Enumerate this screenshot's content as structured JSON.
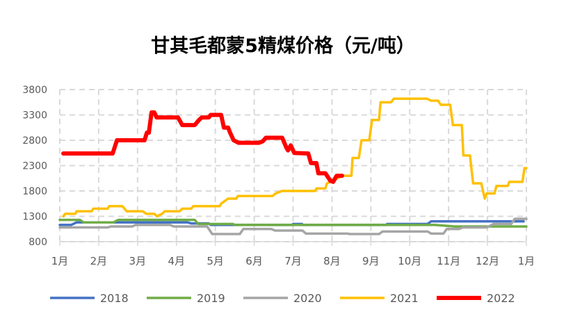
{
  "chart_data": {
    "type": "line",
    "title": "甘其毛都蒙5精煤价格（元/吨）",
    "xlabel": "",
    "ylabel": "",
    "ylim": [
      800,
      3800
    ],
    "yticks": [
      800,
      1300,
      1800,
      2300,
      2800,
      3300,
      3800
    ],
    "xlim": [
      1,
      13
    ],
    "xtick_labels": [
      "1月",
      "2月",
      "3月",
      "4月",
      "5月",
      "6月",
      "7月",
      "8月",
      "9月",
      "10月",
      "11月",
      "12月",
      "1月"
    ],
    "x_unit": "month position (1 = 1月 tick)",
    "grid": true,
    "legend": "bottom",
    "series": [
      {
        "name": "2018",
        "color": "#4472C4",
        "points": [
          [
            1,
            1130
          ],
          [
            1.29,
            1130
          ],
          [
            1.43,
            1180
          ],
          [
            4.29,
            1180
          ],
          [
            4.38,
            1160
          ],
          [
            4.83,
            1160
          ],
          [
            4.88,
            1130
          ],
          [
            6.98,
            1130
          ],
          [
            7.0,
            1150
          ],
          [
            7.23,
            1150
          ],
          [
            7.24,
            1130
          ],
          [
            9.39,
            1130
          ],
          [
            9.42,
            1150
          ],
          [
            10.46,
            1150
          ],
          [
            10.55,
            1200
          ],
          [
            12.93,
            1200
          ]
        ]
      },
      {
        "name": "2019",
        "color": "#70AD47",
        "points": [
          [
            1,
            1230
          ],
          [
            1.52,
            1230
          ],
          [
            1.61,
            1180
          ],
          [
            2.38,
            1180
          ],
          [
            2.5,
            1230
          ],
          [
            4.47,
            1230
          ],
          [
            4.56,
            1150
          ],
          [
            5.45,
            1150
          ],
          [
            5.5,
            1130
          ],
          [
            10.64,
            1130
          ],
          [
            11.16,
            1100
          ],
          [
            13,
            1100
          ]
        ]
      },
      {
        "name": "2020",
        "color": "#A5A5A5",
        "points": [
          [
            1,
            1080
          ],
          [
            2.23,
            1080
          ],
          [
            2.32,
            1100
          ],
          [
            2.86,
            1100
          ],
          [
            2.95,
            1130
          ],
          [
            3.84,
            1130
          ],
          [
            3.93,
            1100
          ],
          [
            4.79,
            1100
          ],
          [
            4.92,
            950
          ],
          [
            5.63,
            950
          ],
          [
            5.72,
            1050
          ],
          [
            6.44,
            1050
          ],
          [
            6.53,
            1020
          ],
          [
            7.24,
            1020
          ],
          [
            7.33,
            960
          ],
          [
            8.41,
            960
          ],
          [
            8.45,
            950
          ],
          [
            9.21,
            950
          ],
          [
            9.3,
            1000
          ],
          [
            10.46,
            1000
          ],
          [
            10.55,
            960
          ],
          [
            10.87,
            960
          ],
          [
            10.95,
            1050
          ],
          [
            11.27,
            1050
          ],
          [
            11.36,
            1080
          ],
          [
            11.98,
            1080
          ],
          [
            12.16,
            1150
          ],
          [
            12.61,
            1150
          ],
          [
            12.7,
            1250
          ],
          [
            13,
            1250
          ]
        ]
      },
      {
        "name": "2021",
        "color": "#FFC000",
        "points": [
          [
            1.09,
            1300
          ],
          [
            1.14,
            1350
          ],
          [
            1.4,
            1350
          ],
          [
            1.43,
            1400
          ],
          [
            1.82,
            1400
          ],
          [
            1.86,
            1450
          ],
          [
            2.23,
            1450
          ],
          [
            2.27,
            1500
          ],
          [
            2.61,
            1500
          ],
          [
            2.72,
            1400
          ],
          [
            3.13,
            1400
          ],
          [
            3.22,
            1350
          ],
          [
            3.43,
            1350
          ],
          [
            3.5,
            1300
          ],
          [
            3.63,
            1350
          ],
          [
            3.7,
            1400
          ],
          [
            4.08,
            1400
          ],
          [
            4.15,
            1450
          ],
          [
            4.38,
            1450
          ],
          [
            4.43,
            1500
          ],
          [
            5.11,
            1500
          ],
          [
            5.15,
            1550
          ],
          [
            5.33,
            1650
          ],
          [
            5.54,
            1650
          ],
          [
            5.58,
            1700
          ],
          [
            6.47,
            1700
          ],
          [
            6.55,
            1750
          ],
          [
            6.71,
            1800
          ],
          [
            7.57,
            1800
          ],
          [
            7.6,
            1850
          ],
          [
            7.83,
            1850
          ],
          [
            7.87,
            1950
          ],
          [
            8.28,
            2100
          ],
          [
            8.5,
            2100
          ],
          [
            8.53,
            2450
          ],
          [
            8.69,
            2450
          ],
          [
            8.76,
            2800
          ],
          [
            8.96,
            2800
          ],
          [
            9.03,
            3200
          ],
          [
            9.21,
            3200
          ],
          [
            9.25,
            3550
          ],
          [
            9.52,
            3550
          ],
          [
            9.59,
            3620
          ],
          [
            10.45,
            3620
          ],
          [
            10.55,
            3580
          ],
          [
            10.73,
            3580
          ],
          [
            10.8,
            3500
          ],
          [
            11.04,
            3500
          ],
          [
            11.11,
            3100
          ],
          [
            11.34,
            3100
          ],
          [
            11.38,
            2500
          ],
          [
            11.55,
            2500
          ],
          [
            11.63,
            1950
          ],
          [
            11.84,
            1950
          ],
          [
            11.93,
            1650
          ],
          [
            11.98,
            1750
          ],
          [
            12.18,
            1750
          ],
          [
            12.23,
            1900
          ],
          [
            12.52,
            1900
          ],
          [
            12.56,
            1980
          ],
          [
            12.9,
            1980
          ],
          [
            12.95,
            2250
          ],
          [
            13,
            2250
          ]
        ]
      },
      {
        "name": "2022",
        "color": "#FF0000",
        "points": [
          [
            1.09,
            2540
          ],
          [
            2.36,
            2540
          ],
          [
            2.47,
            2800
          ],
          [
            3.18,
            2800
          ],
          [
            3.24,
            2950
          ],
          [
            3.29,
            2950
          ],
          [
            3.36,
            3350
          ],
          [
            3.43,
            3350
          ],
          [
            3.49,
            3250
          ],
          [
            4.04,
            3250
          ],
          [
            4.15,
            3100
          ],
          [
            4.47,
            3100
          ],
          [
            4.58,
            3200
          ],
          [
            4.65,
            3250
          ],
          [
            4.83,
            3250
          ],
          [
            4.88,
            3300
          ],
          [
            5.15,
            3300
          ],
          [
            5.22,
            3050
          ],
          [
            5.33,
            3050
          ],
          [
            5.38,
            2950
          ],
          [
            5.47,
            2800
          ],
          [
            5.6,
            2750
          ],
          [
            6.12,
            2750
          ],
          [
            6.22,
            2780
          ],
          [
            6.3,
            2850
          ],
          [
            6.72,
            2850
          ],
          [
            6.83,
            2650
          ],
          [
            6.87,
            2600
          ],
          [
            6.94,
            2700
          ],
          [
            7.03,
            2550
          ],
          [
            7.39,
            2540
          ],
          [
            7.46,
            2350
          ],
          [
            7.6,
            2350
          ],
          [
            7.65,
            2150
          ],
          [
            7.83,
            2150
          ],
          [
            7.96,
            2000
          ],
          [
            8.03,
            1980
          ],
          [
            8.12,
            2100
          ],
          [
            8.26,
            2100
          ]
        ]
      }
    ]
  }
}
